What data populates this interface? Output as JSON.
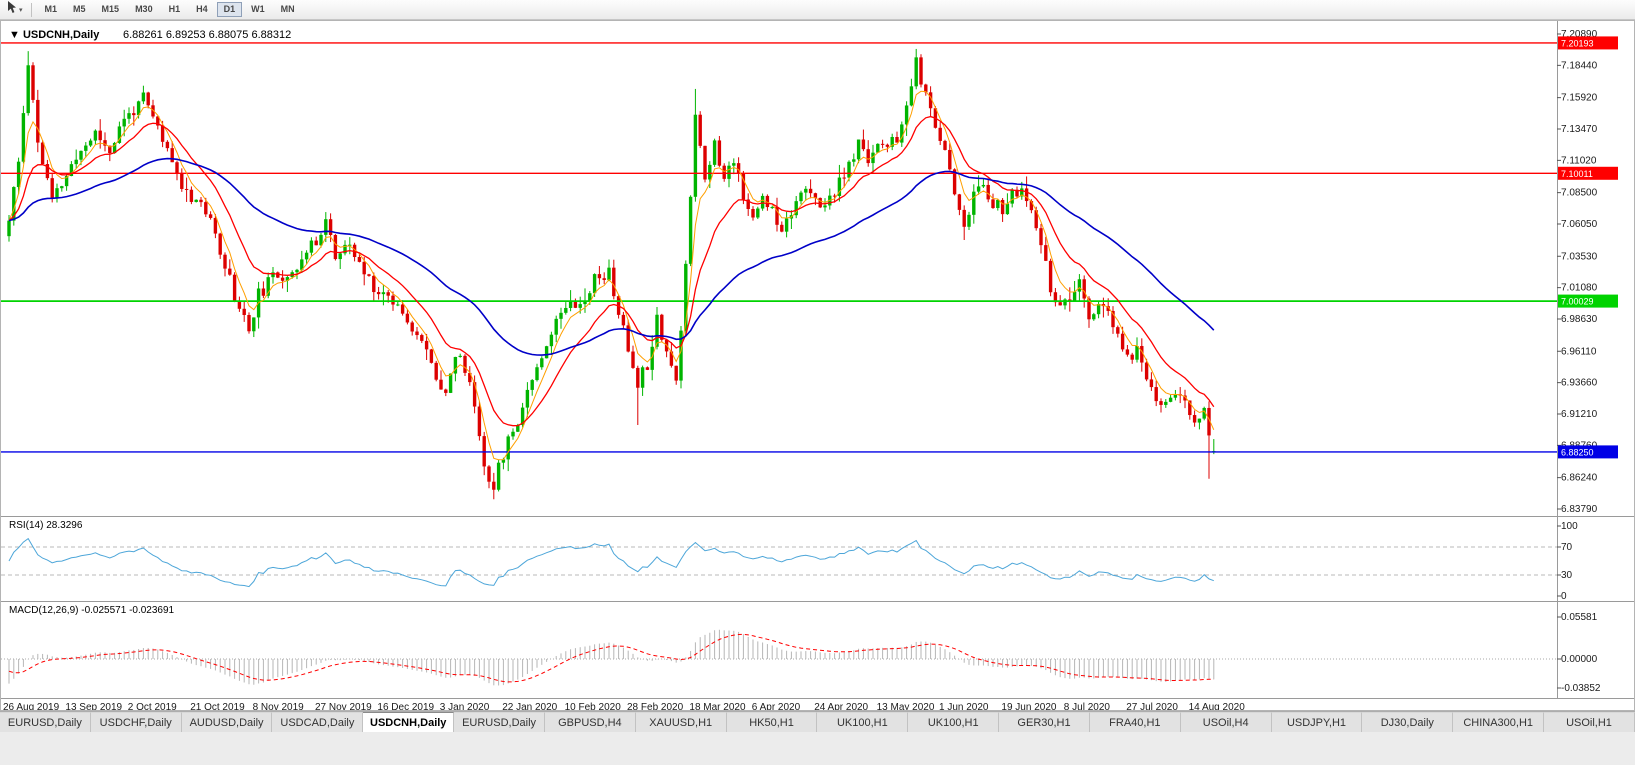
{
  "toolbar": {
    "cursor_tool": "cursor-arrow",
    "timeframes": [
      {
        "label": "M1",
        "active": false
      },
      {
        "label": "M5",
        "active": false
      },
      {
        "label": "M15",
        "active": false
      },
      {
        "label": "M30",
        "active": false
      },
      {
        "label": "H1",
        "active": false
      },
      {
        "label": "H4",
        "active": false
      },
      {
        "label": "D1",
        "active": true
      },
      {
        "label": "W1",
        "active": false
      },
      {
        "label": "MN",
        "active": false
      }
    ]
  },
  "chart_data": {
    "type": "candlestick",
    "title": {
      "symbol": "USDCNH,Daily",
      "ohlc": "6.88261 6.89253 6.88075 6.88312"
    },
    "price_range": [
      6.8379,
      7.2089
    ],
    "y_ticks": [
      "7.20890",
      "7.18440",
      "7.15920",
      "7.13470",
      "7.11020",
      "7.08500",
      "7.06050",
      "7.03530",
      "7.01080",
      "6.98630",
      "6.96110",
      "6.93660",
      "6.91210",
      "6.88760",
      "6.86240",
      "6.83790"
    ],
    "x_labels": [
      "26 Aug 2019",
      "13 Sep 2019",
      "2 Oct 2019",
      "21 Oct 2019",
      "8 Nov 2019",
      "27 Nov 2019",
      "16 Dec 2019",
      "3 Jan 2020",
      "22 Jan 2020",
      "10 Feb 2020",
      "28 Feb 2020",
      "18 Mar 2020",
      "6 Apr 2020",
      "24 Apr 2020",
      "13 May 2020",
      "1 Jun 2020",
      "19 Jun 2020",
      "8 Jul 2020",
      "27 Jul 2020",
      "14 Aug 2020"
    ],
    "label_every": 13,
    "candles_total": 252,
    "seed": 11,
    "colors": {
      "bull": "#00b400",
      "bear": "#dc0000"
    },
    "hlines": [
      {
        "price": 7.20193,
        "label": "7.20193",
        "color": "#ff0000",
        "width": 1.4
      },
      {
        "price": 7.10011,
        "label": "7.10011",
        "color": "#ff0000",
        "width": 1.4
      },
      {
        "price": 7.00029,
        "label": "7.00029",
        "color": "#00d300",
        "width": 1.8
      },
      {
        "price": 6.8825,
        "label": "6.88250",
        "color": "#0000e6",
        "width": 1.4
      }
    ],
    "moving_averages": [
      {
        "period": 5,
        "color": "#ff9f00",
        "width": 1
      },
      {
        "period": 14,
        "color": "#ff0000",
        "width": 1.3
      },
      {
        "period": 50,
        "color": "#0000c8",
        "width": 1.6
      }
    ],
    "anchors": [
      [
        0,
        7.063
      ],
      [
        2,
        7.108
      ],
      [
        4,
        7.188
      ],
      [
        6,
        7.125
      ],
      [
        9,
        7.078
      ],
      [
        12,
        7.098
      ],
      [
        15,
        7.118
      ],
      [
        18,
        7.132
      ],
      [
        21,
        7.118
      ],
      [
        24,
        7.142
      ],
      [
        28,
        7.158
      ],
      [
        31,
        7.135
      ],
      [
        34,
        7.108
      ],
      [
        37,
        7.085
      ],
      [
        40,
        7.078
      ],
      [
        44,
        7.042
      ],
      [
        47,
        7.005
      ],
      [
        50,
        6.978
      ],
      [
        52,
        7.005
      ],
      [
        55,
        7.018
      ],
      [
        58,
        7.022
      ],
      [
        61,
        7.032
      ],
      [
        64,
        7.048
      ],
      [
        66,
        7.065
      ],
      [
        68,
        7.035
      ],
      [
        71,
        7.042
      ],
      [
        74,
        7.022
      ],
      [
        77,
        7.008
      ],
      [
        80,
        7.002
      ],
      [
        83,
        6.988
      ],
      [
        86,
        6.968
      ],
      [
        89,
        6.942
      ],
      [
        91,
        6.93
      ],
      [
        93,
        6.958
      ],
      [
        95,
        6.948
      ],
      [
        97,
        6.92
      ],
      [
        99,
        6.872
      ],
      [
        101,
        6.856
      ],
      [
        103,
        6.882
      ],
      [
        106,
        6.908
      ],
      [
        109,
        6.942
      ],
      [
        112,
        6.968
      ],
      [
        115,
        6.992
      ],
      [
        117,
        7.005
      ],
      [
        119,
        6.996
      ],
      [
        122,
        7.018
      ],
      [
        125,
        7.022
      ],
      [
        127,
        6.992
      ],
      [
        129,
        6.962
      ],
      [
        131,
        6.938
      ],
      [
        133,
        6.952
      ],
      [
        135,
        6.988
      ],
      [
        137,
        6.962
      ],
      [
        139,
        6.938
      ],
      [
        140,
        6.975
      ],
      [
        142,
        7.085
      ],
      [
        143,
        7.148
      ],
      [
        145,
        7.098
      ],
      [
        147,
        7.122
      ],
      [
        149,
        7.095
      ],
      [
        151,
        7.112
      ],
      [
        153,
        7.085
      ],
      [
        155,
        7.062
      ],
      [
        157,
        7.082
      ],
      [
        159,
        7.072
      ],
      [
        161,
        7.058
      ],
      [
        163,
        7.072
      ],
      [
        165,
        7.088
      ],
      [
        167,
        7.082
      ],
      [
        169,
        7.072
      ],
      [
        171,
        7.082
      ],
      [
        173,
        7.092
      ],
      [
        175,
        7.105
      ],
      [
        177,
        7.122
      ],
      [
        179,
        7.112
      ],
      [
        181,
        7.125
      ],
      [
        183,
        7.118
      ],
      [
        185,
        7.128
      ],
      [
        187,
        7.148
      ],
      [
        189,
        7.188
      ],
      [
        191,
        7.158
      ],
      [
        193,
        7.135
      ],
      [
        195,
        7.122
      ],
      [
        197,
        7.082
      ],
      [
        199,
        7.062
      ],
      [
        201,
        7.082
      ],
      [
        203,
        7.092
      ],
      [
        205,
        7.078
      ],
      [
        207,
        7.072
      ],
      [
        209,
        7.082
      ],
      [
        211,
        7.088
      ],
      [
        213,
        7.068
      ],
      [
        215,
        7.042
      ],
      [
        217,
        7.012
      ],
      [
        219,
        6.992
      ],
      [
        221,
        7.002
      ],
      [
        223,
        7.012
      ],
      [
        225,
        6.988
      ],
      [
        227,
        6.998
      ],
      [
        229,
        6.988
      ],
      [
        231,
        6.972
      ],
      [
        233,
        6.955
      ],
      [
        235,
        6.962
      ],
      [
        237,
        6.942
      ],
      [
        239,
        6.925
      ],
      [
        241,
        6.918
      ],
      [
        243,
        6.932
      ],
      [
        245,
        6.918
      ],
      [
        247,
        6.905
      ],
      [
        249,
        6.912
      ],
      [
        250,
        6.892
      ],
      [
        251,
        6.883
      ]
    ],
    "wick_events": [
      {
        "i": 4,
        "high": 7.1955
      },
      {
        "i": 101,
        "low": 6.8455
      },
      {
        "i": 131,
        "low": 6.9035
      },
      {
        "i": 143,
        "high": 7.166
      },
      {
        "i": 189,
        "high": 7.197
      },
      {
        "i": 199,
        "low": 7.048
      },
      {
        "i": 250,
        "low": 6.8615
      }
    ],
    "last_candle": {
      "o": 6.88261,
      "h": 6.89253,
      "l": 6.88075,
      "c": 6.88312
    },
    "indicators": {
      "rsi": {
        "name": "RSI(14)",
        "value": "28.3296",
        "period": 14,
        "levels": [
          30,
          70
        ],
        "ticks": [
          "100",
          "70",
          "30",
          "0"
        ],
        "color": "#4da6d9"
      },
      "macd": {
        "name": "MACD(12,26,9)",
        "value": "-0.025571 -0.023691",
        "fast": 12,
        "slow": 26,
        "signal": 9,
        "ticks": [
          "0.05581",
          "0.00000",
          "-0.03852"
        ],
        "histogram_color": "#b6b6b6",
        "signal_color": "#ff0000",
        "seed": {
          "fast_off": -0.03,
          "slow_off": 0.008,
          "signal_init": -0.012
        }
      }
    }
  },
  "tabs": [
    {
      "label": "EURUSD,Daily",
      "active": false
    },
    {
      "label": "USDCHF,Daily",
      "active": false
    },
    {
      "label": "AUDUSD,Daily",
      "active": false
    },
    {
      "label": "USDCAD,Daily",
      "active": false
    },
    {
      "label": "USDCNH,Daily",
      "active": true
    },
    {
      "label": "EURUSD,Daily",
      "active": false
    },
    {
      "label": "GBPUSD,H4",
      "active": false
    },
    {
      "label": "XAUUSD,H1",
      "active": false
    },
    {
      "label": "HK50,H1",
      "active": false
    },
    {
      "label": "UK100,H1",
      "active": false
    },
    {
      "label": "UK100,H1",
      "active": false
    },
    {
      "label": "GER30,H1",
      "active": false
    },
    {
      "label": "FRA40,H1",
      "active": false
    },
    {
      "label": "USOil,H4",
      "active": false
    },
    {
      "label": "USDJPY,H1",
      "active": false
    },
    {
      "label": "DJ30,Daily",
      "active": false
    },
    {
      "label": "CHINA300,H1",
      "active": false
    },
    {
      "label": "USOil,H1",
      "active": false
    }
  ]
}
